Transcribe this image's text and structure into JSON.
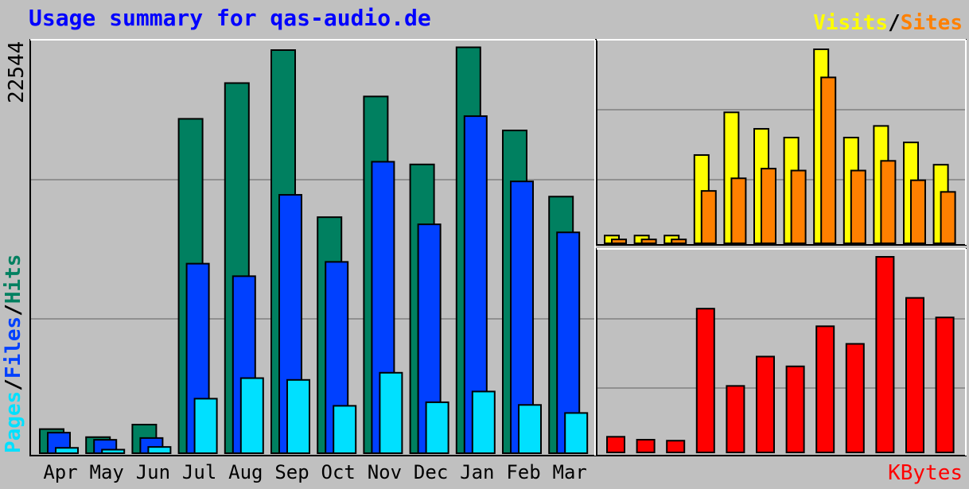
{
  "title": "Usage summary for qas-audio.de",
  "legend": {
    "visits": "Visits",
    "sites": "Sites",
    "pages": "Pages",
    "files": "Files",
    "hits": "Hits",
    "slash": "/"
  },
  "colors": {
    "hits": "#008060",
    "files": "#0040ff",
    "pages": "#00e0ff",
    "visits": "#ffff00",
    "sites": "#ff8000",
    "kbytes": "#ff0000"
  },
  "chart_data": [
    {
      "type": "bar",
      "categories": [
        "Apr",
        "May",
        "Jun",
        "Jul",
        "Aug",
        "Sep",
        "Oct",
        "Nov",
        "Dec",
        "Jan",
        "Feb",
        "Mar"
      ],
      "ymax_label": "22544",
      "ylim": [
        0,
        22544
      ],
      "series": [
        {
          "name": "Hits",
          "values": [
            1350,
            900,
            1600,
            18700,
            20700,
            22544,
            13200,
            19950,
            16150,
            22700,
            18050,
            14350
          ]
        },
        {
          "name": "Files",
          "values": [
            1150,
            750,
            850,
            10600,
            9900,
            14450,
            10700,
            16300,
            12800,
            18850,
            15200,
            12350
          ]
        },
        {
          "name": "Pages",
          "values": [
            300,
            200,
            350,
            3050,
            4200,
            4100,
            2650,
            4500,
            2850,
            3450,
            2700,
            2250
          ]
        }
      ]
    },
    {
      "type": "bar",
      "categories": [
        "Apr",
        "May",
        "Jun",
        "Jul",
        "Aug",
        "Sep",
        "Oct",
        "Nov",
        "Dec",
        "Jan",
        "Feb",
        "Mar"
      ],
      "ylim": [
        0,
        1000
      ],
      "series": [
        {
          "name": "Visits",
          "values": [
            40,
            40,
            40,
            455,
            675,
            590,
            545,
            1000,
            545,
            605,
            520,
            405
          ]
        },
        {
          "name": "Sites",
          "values": [
            20,
            20,
            20,
            270,
            335,
            385,
            375,
            855,
            375,
            425,
            325,
            265
          ]
        }
      ]
    },
    {
      "type": "bar",
      "categories": [
        "Apr",
        "May",
        "Jun",
        "Jul",
        "Aug",
        "Sep",
        "Oct",
        "Nov",
        "Dec",
        "Jan",
        "Feb",
        "Mar"
      ],
      "ylabel": "KBytes",
      "ylim": [
        0,
        1000
      ],
      "series": [
        {
          "name": "KBytes",
          "values": [
            80,
            65,
            60,
            735,
            340,
            490,
            440,
            645,
            555,
            1000,
            790,
            690
          ]
        }
      ]
    }
  ]
}
